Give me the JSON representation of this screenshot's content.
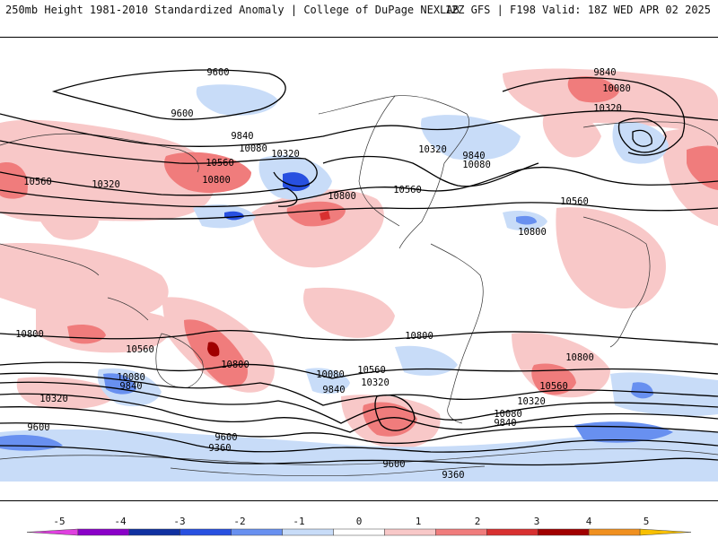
{
  "header": {
    "left": "250mb Height 1981-2010 Standardized Anomaly | College of DuPage NEXLAB",
    "right": "12Z GFS | F198 Valid: 18Z WED APR 02 2025"
  },
  "map": {
    "variable": "250mb geopotential height standardized anomaly",
    "projection": "global cylindrical",
    "contour_labels": [
      {
        "name": "9600-north-pacific",
        "text": "9600"
      },
      {
        "name": "9600-bering",
        "text": "9600"
      },
      {
        "name": "9840-north-pacific",
        "text": "9840"
      },
      {
        "name": "10080-north-pacific",
        "text": "10080"
      },
      {
        "name": "10320-north-pacific",
        "text": "10320"
      },
      {
        "name": "10560-asia",
        "text": "10560"
      },
      {
        "name": "10320-asia",
        "text": "10320"
      },
      {
        "name": "10560-pacific",
        "text": "10560"
      },
      {
        "name": "10800-pacific",
        "text": "10800"
      },
      {
        "name": "10800-central-pacific",
        "text": "10800"
      },
      {
        "name": "10320-canada",
        "text": "10320"
      },
      {
        "name": "10560-us",
        "text": "10560"
      },
      {
        "name": "9840-atlantic",
        "text": "9840"
      },
      {
        "name": "10080-atlantic",
        "text": "10080"
      },
      {
        "name": "9840-greenland",
        "text": "9840"
      },
      {
        "name": "10080-greenland",
        "text": "10080"
      },
      {
        "name": "10320-greenland",
        "text": "10320"
      },
      {
        "name": "10560-atlantic",
        "text": "10560"
      },
      {
        "name": "10800-atlantic",
        "text": "10800"
      },
      {
        "name": "10800-south-indian",
        "text": "10800"
      },
      {
        "name": "10560-australia",
        "text": "10560"
      },
      {
        "name": "10800-australia",
        "text": "10800"
      },
      {
        "name": "10080-south-indian",
        "text": "10080"
      },
      {
        "name": "9840-south-indian",
        "text": "9840"
      },
      {
        "name": "10320-south-indian",
        "text": "10320"
      },
      {
        "name": "9600-south-indian",
        "text": "9600"
      },
      {
        "name": "9600-south-pacific",
        "text": "9600"
      },
      {
        "name": "9360-south-pacific",
        "text": "9360"
      },
      {
        "name": "10080-south-pacific",
        "text": "10080"
      },
      {
        "name": "9840-south-pacific",
        "text": "9840"
      },
      {
        "name": "10560-south-pacific",
        "text": "10560"
      },
      {
        "name": "10320-south-pacific",
        "text": "10320"
      },
      {
        "name": "10800-south-america",
        "text": "10800"
      },
      {
        "name": "9600-southern-ocean",
        "text": "9600"
      },
      {
        "name": "9360-southern-ocean",
        "text": "9360"
      },
      {
        "name": "10080-south-atlantic",
        "text": "10080"
      },
      {
        "name": "9840-south-atlantic",
        "text": "9840"
      },
      {
        "name": "10320-south-atlantic",
        "text": "10320"
      },
      {
        "name": "10560-south-atlantic",
        "text": "10560"
      },
      {
        "name": "10800-south-atlantic",
        "text": "10800"
      }
    ]
  },
  "colorbar": {
    "ticks": [
      "-5",
      "-4",
      "-3",
      "-2",
      "-1",
      "0",
      "1",
      "2",
      "3",
      "4",
      "5"
    ],
    "colors": [
      "#e040e0",
      "#8a00c8",
      "#1030a0",
      "#2850e0",
      "#6890f0",
      "#c8dcf8",
      "#ffffff",
      "#f8c8c8",
      "#f07c7c",
      "#d83030",
      "#a00000",
      "#f09020",
      "#f8c000"
    ]
  }
}
